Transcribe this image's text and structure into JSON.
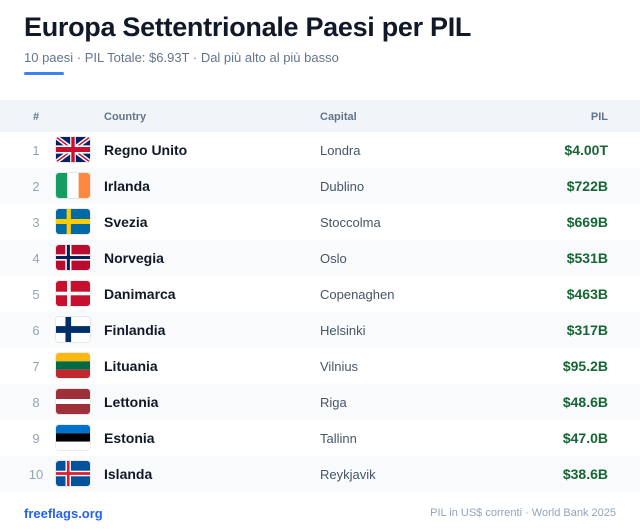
{
  "header": {
    "title": "Europa Settentrionale Paesi per PIL",
    "subtitle": "10 paesi · PIL Totale: $6.93T · Dal più alto al più basso",
    "accent_color": "#3b82f6"
  },
  "table": {
    "columns": {
      "num": "#",
      "country": "Country",
      "capital": "Capital",
      "pil": "PIL"
    },
    "rows": [
      {
        "rank": "1",
        "flag": "uk-flag-icon",
        "country": "Regno Unito",
        "capital": "Londra",
        "pil": "$4.00T"
      },
      {
        "rank": "2",
        "flag": "ireland-flag-icon",
        "country": "Irlanda",
        "capital": "Dublino",
        "pil": "$722B"
      },
      {
        "rank": "3",
        "flag": "sweden-flag-icon",
        "country": "Svezia",
        "capital": "Stoccolma",
        "pil": "$669B"
      },
      {
        "rank": "4",
        "flag": "norway-flag-icon",
        "country": "Norvegia",
        "capital": "Oslo",
        "pil": "$531B"
      },
      {
        "rank": "5",
        "flag": "denmark-flag-icon",
        "country": "Danimarca",
        "capital": "Copenaghen",
        "pil": "$463B"
      },
      {
        "rank": "6",
        "flag": "finland-flag-icon",
        "country": "Finlandia",
        "capital": "Helsinki",
        "pil": "$317B"
      },
      {
        "rank": "7",
        "flag": "lithuania-flag-icon",
        "country": "Lituania",
        "capital": "Vilnius",
        "pil": "$95.2B"
      },
      {
        "rank": "8",
        "flag": "latvia-flag-icon",
        "country": "Lettonia",
        "capital": "Riga",
        "pil": "$48.6B"
      },
      {
        "rank": "9",
        "flag": "estonia-flag-icon",
        "country": "Estonia",
        "capital": "Tallinn",
        "pil": "$47.0B"
      },
      {
        "rank": "10",
        "flag": "iceland-flag-icon",
        "country": "Islanda",
        "capital": "Reykjavik",
        "pil": "$38.6B"
      }
    ]
  },
  "footer": {
    "brand": "freeflags.org",
    "source": "PIL in US$ correnti · World Bank 2025"
  }
}
